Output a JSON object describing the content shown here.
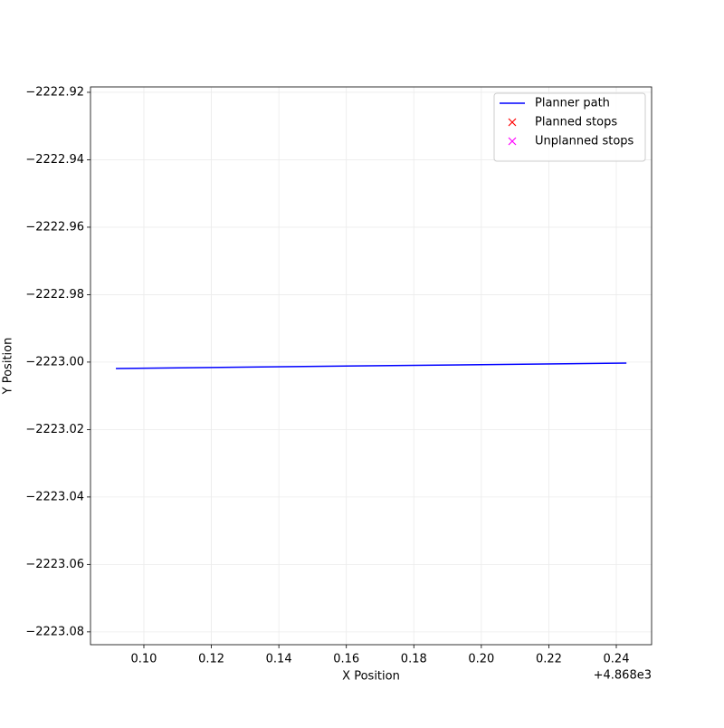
{
  "chart_data": {
    "type": "line",
    "xlabel": "X Position",
    "ylabel": "Y Position",
    "x_offset_label": "+4.868e3",
    "xlim": [
      0.08418,
      0.25046
    ],
    "ylim": [
      -2223.0838,
      -2222.9184
    ],
    "xticks": [
      {
        "value": 0.1,
        "label": "0.10"
      },
      {
        "value": 0.12,
        "label": "0.12"
      },
      {
        "value": 0.14,
        "label": "0.14"
      },
      {
        "value": 0.16,
        "label": "0.16"
      },
      {
        "value": 0.18,
        "label": "0.18"
      },
      {
        "value": 0.2,
        "label": "0.20"
      },
      {
        "value": 0.22,
        "label": "0.22"
      },
      {
        "value": 0.24,
        "label": "0.24"
      }
    ],
    "yticks": [
      {
        "value": -2222.92,
        "label": "−2222.92"
      },
      {
        "value": -2222.94,
        "label": "−2222.94"
      },
      {
        "value": -2222.96,
        "label": "−2222.96"
      },
      {
        "value": -2222.98,
        "label": "−2222.98"
      },
      {
        "value": -2223.0,
        "label": "−2223.00"
      },
      {
        "value": -2223.02,
        "label": "−2223.02"
      },
      {
        "value": -2223.04,
        "label": "−2223.04"
      },
      {
        "value": -2223.06,
        "label": "−2223.06"
      },
      {
        "value": -2223.08,
        "label": "−2223.08"
      }
    ],
    "grid": true,
    "legend": "upper right",
    "series": [
      {
        "name": "Planner path",
        "color": "#0000ff",
        "style": "line",
        "x": [
          0.0917,
          0.243
        ],
        "values": [
          -2223.0019,
          -2223.0003
        ]
      },
      {
        "name": "Planned stops",
        "color": "#ff0000",
        "style": "marker",
        "x": [],
        "values": []
      },
      {
        "name": "Unplanned stops",
        "color": "#ff00ff",
        "style": "marker",
        "x": [],
        "values": []
      }
    ]
  }
}
